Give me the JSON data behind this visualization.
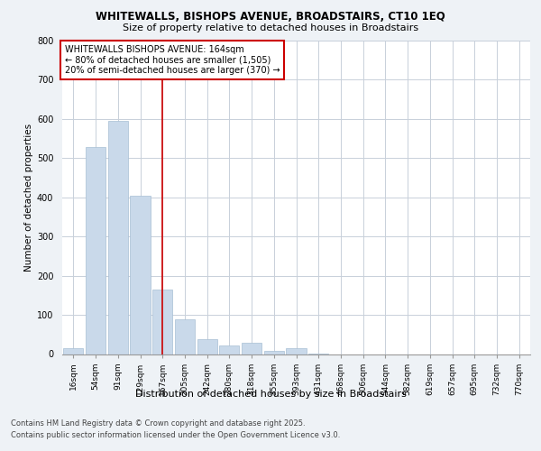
{
  "title_line1": "WHITEWALLS, BISHOPS AVENUE, BROADSTAIRS, CT10 1EQ",
  "title_line2": "Size of property relative to detached houses in Broadstairs",
  "xlabel": "Distribution of detached houses by size in Broadstairs",
  "ylabel": "Number of detached properties",
  "bar_color": "#c9d9ea",
  "bar_edge_color": "#a8bfd4",
  "vline_color": "#cc0000",
  "annotation_title": "WHITEWALLS BISHOPS AVENUE: 164sqm",
  "annotation_line1": "← 80% of detached houses are smaller (1,505)",
  "annotation_line2": "20% of semi-detached houses are larger (370) →",
  "categories": [
    "16sqm",
    "54sqm",
    "91sqm",
    "129sqm",
    "167sqm",
    "205sqm",
    "242sqm",
    "280sqm",
    "318sqm",
    "355sqm",
    "393sqm",
    "431sqm",
    "468sqm",
    "506sqm",
    "544sqm",
    "582sqm",
    "619sqm",
    "657sqm",
    "695sqm",
    "732sqm",
    "770sqm"
  ],
  "values": [
    14,
    528,
    594,
    405,
    165,
    88,
    37,
    22,
    29,
    7,
    14,
    2,
    0,
    0,
    0,
    0,
    0,
    0,
    0,
    0,
    0
  ],
  "ylim": [
    0,
    800
  ],
  "yticks": [
    0,
    100,
    200,
    300,
    400,
    500,
    600,
    700,
    800
  ],
  "footer_line1": "Contains HM Land Registry data © Crown copyright and database right 2025.",
  "footer_line2": "Contains public sector information licensed under the Open Government Licence v3.0.",
  "bg_color": "#eef2f6",
  "plot_bg_color": "#ffffff",
  "grid_color": "#c8d0da",
  "title_fontsize": 8.5,
  "subtitle_fontsize": 8.0,
  "tick_fontsize": 6.5,
  "ylabel_fontsize": 7.5,
  "xlabel_fontsize": 8.0,
  "annot_fontsize": 7.0,
  "footer_fontsize": 6.0
}
